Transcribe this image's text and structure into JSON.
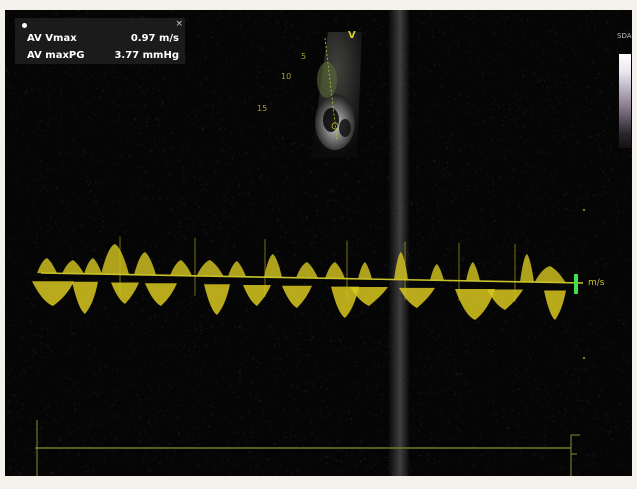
{
  "measurements": {
    "rows": [
      {
        "label": "AV Vmax",
        "value": "0.97 m/s"
      },
      {
        "label": "AV maxPG",
        "value": "3.77 mmHg"
      }
    ]
  },
  "image_labels": {
    "view_marker": "V",
    "baseline_unit": "m/s",
    "depth_1": "10",
    "depth_2": "15",
    "depth_3": "5",
    "greyscale_label": "SDAR"
  },
  "colors": {
    "background": "#050505",
    "doppler_signal": "#d8c820",
    "baseline": "#c8c22a",
    "baseline_marker": "#3fe04a",
    "time_axis": "#6e7d28",
    "overlay_panel": "#1b1b1b"
  },
  "icons": {
    "top_left": "dot-icon",
    "top_right": "close-icon"
  }
}
